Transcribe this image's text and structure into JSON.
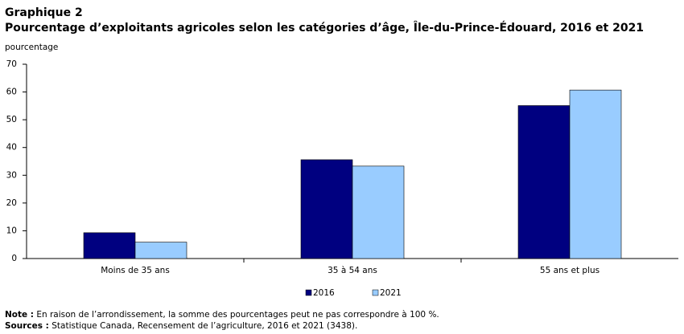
{
  "chart_data": {
    "type": "bar",
    "label": "Graphique 2",
    "title": "Pourcentage d’exploitants agricoles selon les catégories d’âge, Île-du-Prince-Édouard, 2016 et 2021",
    "y_label": "pourcentage",
    "categories": [
      "Moins de 35 ans",
      "35 à 54 ans",
      "55 ans et plus"
    ],
    "series": [
      {
        "name": "2016",
        "color": "#000080",
        "values": [
          9.3,
          35.6,
          55.1
        ]
      },
      {
        "name": "2021",
        "color": "#99ccff",
        "values": [
          5.9,
          33.3,
          60.7
        ]
      }
    ],
    "ylim": [
      0,
      70
    ],
    "yticks": [
      0,
      10,
      20,
      30,
      40,
      50,
      60,
      70
    ],
    "grid": false,
    "note_label": "Note :",
    "note": "En raison de l’arrondissement, la somme des pourcentages peut ne pas correspondre à 100 %.",
    "sources_label": "Sources :",
    "sources": "Statistique Canada, Recensement de l’agriculture, 2016 et 2021 (3438)."
  }
}
